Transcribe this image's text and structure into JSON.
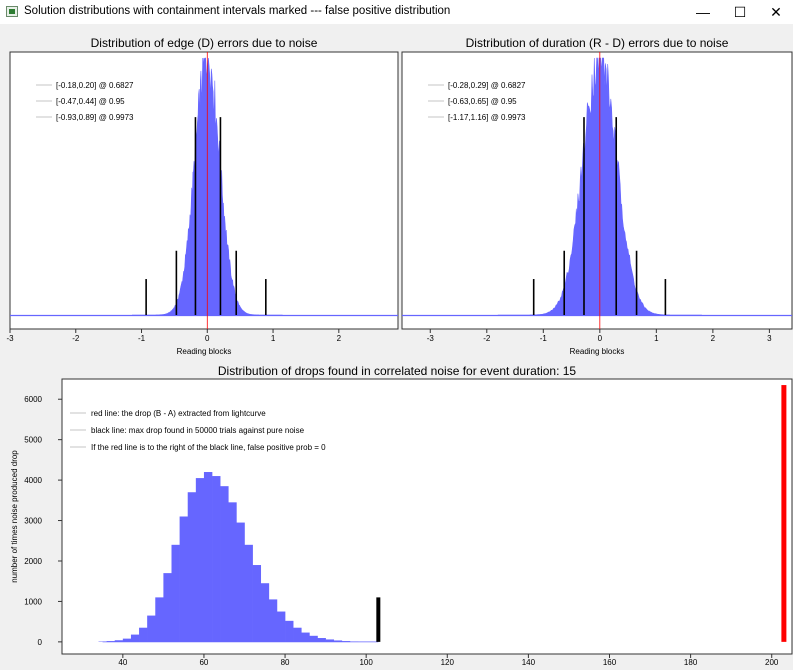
{
  "window": {
    "title": "Solution distributions with containment intervals marked --- false positive distribution",
    "minimize_glyph": "—",
    "maximize_glyph": "☐",
    "close_glyph": "✕"
  },
  "colors": {
    "hist_fill": "#6666ff",
    "red_line": "#ff0000",
    "black_line": "#000000"
  },
  "chart_data": [
    {
      "type": "bar",
      "title": "Distribution of edge (D) errors due to noise",
      "xlabel": "Reading blocks",
      "ylabel": "",
      "xlim": [
        -3,
        2.9
      ],
      "x_ticks": [
        -3,
        -2,
        -1,
        0,
        1,
        2
      ],
      "distribution": {
        "center": 0.0,
        "sigma": 0.19,
        "peak": 1.0
      },
      "center_line": 0.0,
      "legend": [
        "[-0.18,0.20] @ 0.6827",
        "[-0.47,0.44] @ 0.95",
        "[-0.93,0.89] @ 0.9973"
      ],
      "intervals": [
        {
          "lo": -0.18,
          "hi": 0.2,
          "level": 0.6827,
          "height": 0.77
        },
        {
          "lo": -0.47,
          "hi": 0.44,
          "level": 0.95,
          "height": 0.25
        },
        {
          "lo": -0.93,
          "hi": 0.89,
          "level": 0.9973,
          "height": 0.14
        }
      ]
    },
    {
      "type": "bar",
      "title": "Distribution of duration (R - D) errors due to noise",
      "xlabel": "Reading blocks",
      "ylabel": "",
      "xlim": [
        -3.5,
        3.4
      ],
      "x_ticks": [
        -3,
        -2,
        -1,
        0,
        1,
        2,
        3
      ],
      "distribution": {
        "center": 0.0,
        "sigma": 0.3,
        "peak": 1.0
      },
      "center_line": 0.0,
      "legend": [
        "[-0.28,0.29] @ 0.6827",
        "[-0.63,0.65] @ 0.95",
        "[-1.17,1.16] @ 0.9973"
      ],
      "intervals": [
        {
          "lo": -0.28,
          "hi": 0.29,
          "level": 0.6827,
          "height": 0.77
        },
        {
          "lo": -0.63,
          "hi": 0.65,
          "level": 0.95,
          "height": 0.25
        },
        {
          "lo": -1.17,
          "hi": 1.16,
          "level": 0.9973,
          "height": 0.14
        }
      ]
    },
    {
      "type": "bar",
      "title": "Distribution of drops found in correlated noise for event duration: 15",
      "xlabel": "",
      "ylabel": "number of times noise produced drop",
      "xlim": [
        25,
        205
      ],
      "ylim": [
        -300,
        6500
      ],
      "x_ticks": [
        40,
        60,
        80,
        100,
        120,
        140,
        160,
        180,
        200
      ],
      "y_ticks": [
        0,
        1000,
        2000,
        3000,
        4000,
        5000,
        6000
      ],
      "bins": [
        [
          35,
          10
        ],
        [
          37,
          20
        ],
        [
          39,
          40
        ],
        [
          41,
          80
        ],
        [
          43,
          180
        ],
        [
          45,
          350
        ],
        [
          47,
          650
        ],
        [
          49,
          1100
        ],
        [
          51,
          1700
        ],
        [
          53,
          2400
        ],
        [
          55,
          3100
        ],
        [
          57,
          3700
        ],
        [
          59,
          4050
        ],
        [
          61,
          4200
        ],
        [
          63,
          4100
        ],
        [
          65,
          3850
        ],
        [
          67,
          3450
        ],
        [
          69,
          2950
        ],
        [
          71,
          2400
        ],
        [
          73,
          1900
        ],
        [
          75,
          1450
        ],
        [
          77,
          1050
        ],
        [
          79,
          750
        ],
        [
          81,
          520
        ],
        [
          83,
          350
        ],
        [
          85,
          230
        ],
        [
          87,
          150
        ],
        [
          89,
          95
        ],
        [
          91,
          60
        ],
        [
          93,
          35
        ],
        [
          95,
          20
        ],
        [
          97,
          10
        ],
        [
          99,
          5
        ]
      ],
      "bin_width": 2,
      "black_line": {
        "x": 103,
        "height": 1100
      },
      "red_line": {
        "x": 203,
        "height": 6350
      },
      "legend": [
        "red line: the drop (B - A) extracted from lightcurve",
        "black line: max drop found in 50000 trials against pure noise",
        "If the red line is to the right of the black line, false positive prob = 0"
      ]
    }
  ]
}
